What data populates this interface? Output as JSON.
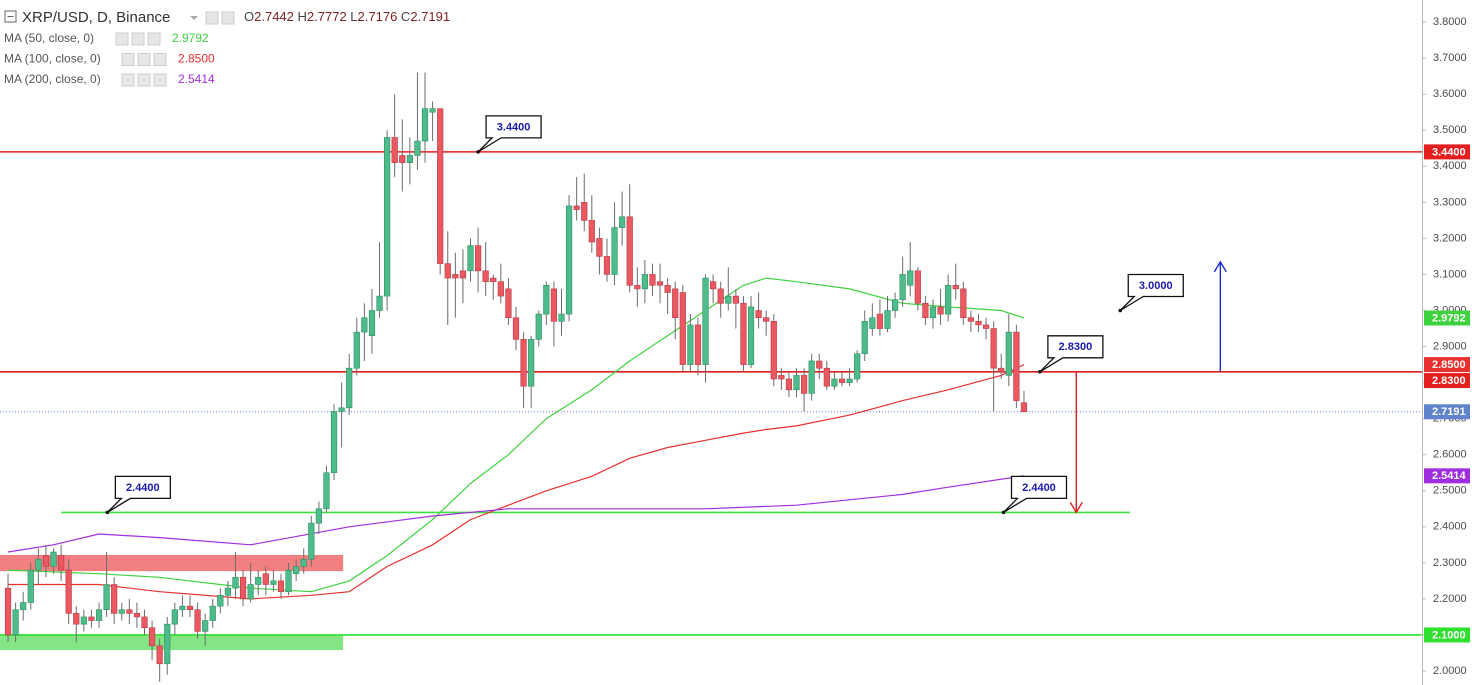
{
  "chart_data": {
    "type": "candlestick",
    "symbol": "XRP/USD, D, Binance",
    "ohlc_letters": [
      "O",
      "H",
      "L",
      "C"
    ],
    "up_color": "#4dbb8a",
    "down_color": "#ea5862",
    "wick_color": "#6b6b6b",
    "candles": {
      "open": [
        2.23,
        2.1,
        2.17,
        2.19,
        2.28,
        2.32,
        2.29,
        2.32,
        2.28,
        2.16,
        2.13,
        2.15,
        2.14,
        2.17,
        2.24,
        2.16,
        2.17,
        2.16,
        2.15,
        2.12,
        2.07,
        2.02,
        2.13,
        2.17,
        2.18,
        2.17,
        2.11,
        2.14,
        2.18,
        2.21,
        2.23,
        2.26,
        2.2,
        2.24,
        2.27,
        2.24,
        2.25,
        2.22,
        2.27,
        2.29,
        2.31,
        2.41,
        2.45,
        2.55,
        2.72,
        2.73,
        2.84,
        2.94,
        2.93,
        3.0,
        3.04,
        3.48,
        3.43,
        3.41,
        3.43,
        3.47,
        3.55,
        3.56,
        3.13,
        3.1,
        3.11,
        3.11,
        3.18,
        3.11,
        3.09,
        3.08,
        3.06,
        2.98,
        2.92,
        2.79,
        2.92,
        2.99,
        3.06,
        2.97,
        2.99,
        3.29,
        3.3,
        3.25,
        3.2,
        3.15,
        3.1,
        3.23,
        3.26,
        3.07,
        3.06,
        3.1,
        3.08,
        3.07,
        3.06,
        3.05,
        2.85,
        2.96,
        2.85,
        3.08,
        3.06,
        3.02,
        3.04,
        3.02,
        2.85,
        3.0,
        2.98,
        2.97,
        2.82,
        2.81,
        2.78,
        2.82,
        2.77,
        2.86,
        2.84,
        2.79,
        2.81,
        2.8,
        2.81,
        2.88,
        2.95,
        2.99,
        2.95,
        3.0,
        3.03,
        3.07,
        3.11,
        3.02,
        2.98,
        3.01,
        2.99,
        3.07,
        3.06,
        2.98,
        2.97,
        2.96,
        2.95,
        2.84,
        2.82,
        2.94,
        2.7442
      ],
      "high": [
        2.27,
        2.19,
        2.22,
        2.3,
        2.34,
        2.35,
        2.34,
        2.35,
        2.31,
        2.18,
        2.17,
        2.17,
        2.19,
        2.33,
        2.26,
        2.19,
        2.2,
        2.19,
        2.17,
        2.14,
        2.09,
        2.15,
        2.19,
        2.21,
        2.21,
        2.19,
        2.16,
        2.2,
        2.23,
        2.25,
        2.33,
        2.28,
        2.3,
        2.28,
        2.29,
        2.28,
        2.27,
        2.3,
        2.31,
        2.34,
        2.43,
        2.47,
        2.57,
        2.74,
        2.8,
        2.88,
        2.98,
        3.02,
        3.06,
        3.19,
        3.5,
        3.6,
        3.53,
        3.48,
        3.66,
        3.66,
        3.58,
        3.56,
        3.22,
        3.16,
        3.17,
        3.2,
        3.23,
        3.19,
        3.1,
        3.13,
        3.09,
        3.01,
        2.94,
        2.93,
        3.0,
        3.08,
        3.08,
        3.06,
        3.32,
        3.37,
        3.38,
        3.32,
        3.23,
        3.2,
        3.3,
        3.33,
        3.35,
        3.12,
        3.14,
        3.13,
        3.13,
        3.09,
        3.08,
        3.07,
        2.99,
        2.98,
        3.1,
        3.1,
        3.08,
        3.12,
        3.06,
        3.04,
        3.04,
        3.05,
        3.0,
        2.99,
        2.84,
        2.83,
        2.84,
        2.84,
        2.88,
        2.88,
        2.86,
        2.83,
        2.83,
        2.84,
        2.89,
        3.0,
        3.02,
        3.03,
        3.04,
        3.05,
        3.15,
        3.19,
        3.12,
        3.04,
        3.03,
        3.06,
        3.1,
        3.13,
        3.08,
        3.0,
        2.99,
        2.98,
        2.97,
        2.88,
        2.99,
        2.96,
        2.7772
      ],
      "low": [
        2.08,
        2.08,
        2.14,
        2.17,
        2.24,
        2.26,
        2.27,
        2.25,
        2.13,
        2.08,
        2.11,
        2.12,
        2.12,
        2.15,
        2.13,
        2.14,
        2.13,
        2.12,
        2.1,
        2.03,
        1.97,
        1.99,
        2.1,
        2.15,
        2.15,
        2.09,
        2.07,
        2.12,
        2.16,
        2.18,
        2.2,
        2.18,
        2.19,
        2.21,
        2.21,
        2.22,
        2.2,
        2.21,
        2.25,
        2.27,
        2.29,
        2.38,
        2.44,
        2.53,
        2.62,
        2.71,
        2.82,
        2.86,
        2.88,
        2.98,
        3.0,
        3.37,
        3.33,
        3.35,
        3.39,
        3.41,
        3.47,
        3.1,
        2.96,
        2.98,
        3.02,
        3.08,
        3.05,
        3.04,
        3.03,
        3.02,
        2.96,
        2.89,
        2.73,
        2.73,
        2.9,
        2.96,
        2.9,
        2.93,
        2.97,
        3.25,
        3.22,
        3.16,
        3.1,
        3.08,
        3.07,
        3.18,
        3.05,
        3.01,
        3.02,
        3.04,
        3.02,
        2.99,
        2.92,
        2.83,
        2.83,
        2.82,
        2.8,
        3.02,
        2.98,
        3.0,
        2.95,
        2.83,
        2.84,
        2.95,
        2.93,
        2.79,
        2.78,
        2.76,
        2.76,
        2.72,
        2.75,
        2.81,
        2.78,
        2.78,
        2.79,
        2.79,
        2.8,
        2.86,
        2.93,
        2.93,
        2.94,
        2.98,
        3.01,
        3.04,
        3.0,
        2.96,
        2.95,
        2.96,
        2.97,
        3.03,
        2.96,
        2.94,
        2.94,
        2.92,
        2.72,
        2.81,
        2.79,
        2.73,
        2.7176
      ],
      "close": [
        2.1,
        2.17,
        2.19,
        2.28,
        2.31,
        2.29,
        2.33,
        2.28,
        2.16,
        2.13,
        2.15,
        2.14,
        2.17,
        2.24,
        2.16,
        2.17,
        2.16,
        2.15,
        2.12,
        2.07,
        2.02,
        2.13,
        2.17,
        2.18,
        2.17,
        2.11,
        2.14,
        2.18,
        2.21,
        2.23,
        2.26,
        2.2,
        2.24,
        2.26,
        2.24,
        2.25,
        2.22,
        2.28,
        2.29,
        2.31,
        2.41,
        2.45,
        2.55,
        2.72,
        2.73,
        2.84,
        2.94,
        2.98,
        3.0,
        3.04,
        3.48,
        3.41,
        3.41,
        3.43,
        3.47,
        3.56,
        3.56,
        3.13,
        3.09,
        3.09,
        3.09,
        3.18,
        3.11,
        3.08,
        3.08,
        3.04,
        2.98,
        2.92,
        2.79,
        2.92,
        2.99,
        3.07,
        2.97,
        2.99,
        3.29,
        3.28,
        3.25,
        3.19,
        3.15,
        3.1,
        3.23,
        3.26,
        3.07,
        3.06,
        3.1,
        3.07,
        3.07,
        3.05,
        2.98,
        2.85,
        2.96,
        2.85,
        3.09,
        3.06,
        3.02,
        3.04,
        3.02,
        2.85,
        3.01,
        2.98,
        2.97,
        2.81,
        2.81,
        2.78,
        2.82,
        2.77,
        2.86,
        2.84,
        2.79,
        2.81,
        2.8,
        2.81,
        2.88,
        2.97,
        2.98,
        2.95,
        3.0,
        3.03,
        3.1,
        3.11,
        3.02,
        2.98,
        3.01,
        2.99,
        3.07,
        3.06,
        2.98,
        2.97,
        2.96,
        2.95,
        2.84,
        2.83,
        2.94,
        2.75,
        2.7191
      ]
    },
    "moving_averages": [
      {
        "name": "MA (50, close, 0)",
        "color": "#3ed23e",
        "last": 2.9792,
        "x": [
          0,
          12,
          20,
          32,
          40,
          45,
          50,
          56,
          61,
          66,
          71,
          77,
          82,
          87,
          92,
          97,
          100,
          104,
          111,
          118,
          124,
          131,
          134
        ],
        "values": [
          2.28,
          2.27,
          2.26,
          2.23,
          2.22,
          2.25,
          2.32,
          2.42,
          2.52,
          2.6,
          2.7,
          2.78,
          2.86,
          2.93,
          3.0,
          3.07,
          3.09,
          3.08,
          3.06,
          3.02,
          3.01,
          3.0,
          2.9792
        ]
      },
      {
        "name": "MA (100, close, 0)",
        "color": "#e8302f",
        "last": {
          "value": 2.85,
          "label": "2.8500"
        },
        "x": [
          0,
          12,
          20,
          32,
          40,
          45,
          50,
          56,
          61,
          66,
          71,
          77,
          82,
          87,
          92,
          97,
          100,
          104,
          111,
          118,
          124,
          131,
          134
        ],
        "values": [
          2.24,
          2.24,
          2.22,
          2.2,
          2.21,
          2.22,
          2.29,
          2.35,
          2.42,
          2.46,
          2.5,
          2.54,
          2.59,
          2.62,
          2.64,
          2.66,
          2.67,
          2.68,
          2.71,
          2.75,
          2.78,
          2.82,
          2.85
        ]
      },
      {
        "name": "MA (200, close, 0)",
        "color": "#a02ee0",
        "last": 2.5414,
        "x": [
          0,
          6,
          12,
          20,
          32,
          45,
          56,
          66,
          77,
          92,
          104,
          118,
          124,
          134
        ],
        "values": [
          2.33,
          2.35,
          2.38,
          2.37,
          2.35,
          2.4,
          2.43,
          2.45,
          2.45,
          2.45,
          2.46,
          2.49,
          2.51,
          2.5414
        ]
      }
    ],
    "levels": [
      {
        "price": {
          "value": 3.44,
          "label": "3.4400"
        },
        "color": "#e41e1e",
        "tag": true
      },
      {
        "price": {
          "value": 2.83,
          "label": "2.8300"
        },
        "color": "#e41e1e",
        "tag": true
      },
      {
        "price": 2.7191,
        "color": "#5f84cc",
        "style": "dotted",
        "tag": true
      },
      {
        "price": {
          "value": 2.44,
          "label": "2.4400"
        },
        "color": "#3ee03e",
        "tag": false,
        "x": [
          7,
          148
        ]
      },
      {
        "price": {
          "value": 2.1,
          "label": "2.1000"
        },
        "color": "#2fe02f",
        "tag": true
      }
    ],
    "zones": [
      {
        "from": 2.277,
        "to": 2.322,
        "x": [
          -1.06,
          44.2
        ],
        "color": "#f06a6a"
      },
      {
        "from": 2.058,
        "to": 2.1,
        "x": [
          -1.06,
          44.2
        ],
        "color": "#6fe06f"
      }
    ],
    "callouts": [
      {
        "price": {
          "value": 3.44,
          "label": "3.4400"
        },
        "x": 62
      },
      {
        "price": {
          "value": 3.0,
          "label": "3.0000"
        },
        "x": 146.7
      },
      {
        "price": {
          "value": 2.83,
          "label": "2.8300"
        },
        "x": 136.1
      },
      {
        "price": {
          "value": 2.44,
          "label": "2.4400"
        },
        "x": 13.1
      },
      {
        "price": {
          "value": 2.44,
          "label": "2.4400"
        },
        "x": 131.3
      }
    ],
    "arrows": [
      {
        "from": 2.83,
        "to": 3.135,
        "x": 159.9,
        "color": "#1a2bd6"
      },
      {
        "from": 2.83,
        "to": 2.44,
        "x": 140.9,
        "color": "#e02020"
      }
    ],
    "xlim": [
      -1.06,
      186.5
    ],
    "ylim": [
      1.9612,
      3.8613
    ],
    "yticks": [
      {
        "value": 2.0,
        "label": "2.0000"
      },
      {
        "value": 2.1,
        "label": "2.1000"
      },
      {
        "value": 2.2,
        "label": "2.2000"
      },
      {
        "value": 2.3,
        "label": "2.3000"
      },
      {
        "value": 2.4,
        "label": "2.4000"
      },
      {
        "value": 2.5,
        "label": "2.5000"
      },
      {
        "value": 2.6,
        "label": "2.6000"
      },
      {
        "value": 2.7,
        "label": "2.7000"
      },
      {
        "value": 2.8,
        "label": "2.8000"
      },
      {
        "value": 2.9,
        "label": "2.9000"
      },
      {
        "value": 3.0,
        "label": "3.0000"
      },
      {
        "value": 3.1,
        "label": "3.1000"
      },
      {
        "value": 3.2,
        "label": "3.2000"
      },
      {
        "value": 3.3,
        "label": "3.3000"
      },
      {
        "value": 3.4,
        "label": "3.4000"
      },
      {
        "value": 3.5,
        "label": "3.5000"
      },
      {
        "value": 3.6,
        "label": "3.6000"
      },
      {
        "value": 3.7,
        "label": "3.7000"
      },
      {
        "value": 3.8,
        "label": "3.8000"
      }
    ]
  }
}
